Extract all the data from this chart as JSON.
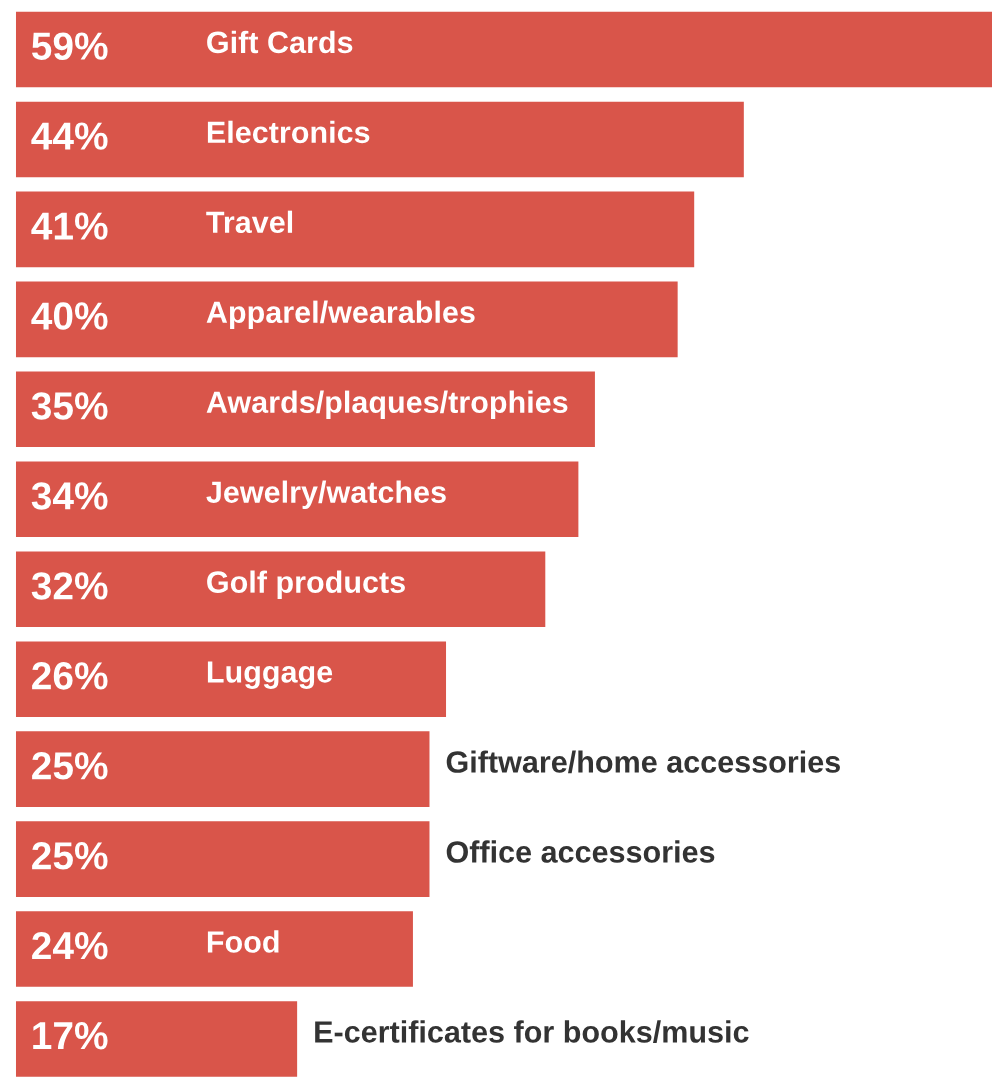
{
  "chart_data": {
    "type": "bar",
    "orientation": "horizontal",
    "categories": [
      "Gift Cards",
      "Electronics",
      "Travel",
      "Apparel/wearables",
      "Awards/plaques/trophies",
      "Jewelry/watches",
      "Golf products",
      "Luggage",
      "Giftware/home accessories",
      "Office accessories",
      "Food",
      "E-certificates for books/music"
    ],
    "values": [
      59,
      44,
      41,
      40,
      35,
      34,
      32,
      26,
      25,
      25,
      24,
      17
    ],
    "value_labels": [
      "59%",
      "44%",
      "41%",
      "40%",
      "35%",
      "34%",
      "32%",
      "26%",
      "25%",
      "25%",
      "24%",
      "17%"
    ],
    "color": "#d9554a"
  }
}
